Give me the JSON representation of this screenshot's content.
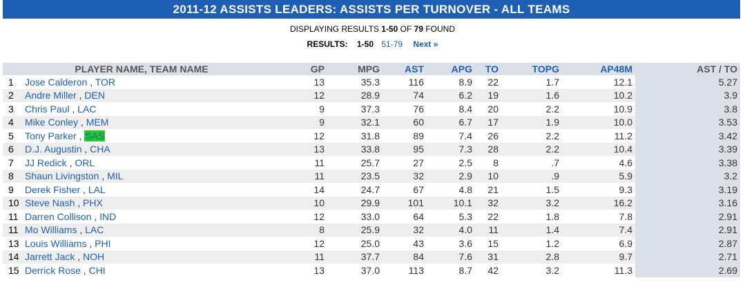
{
  "header": {
    "title": "2011-12 ASSISTS LEADERS:  ASSISTS PER TURNOVER  - ALL TEAMS"
  },
  "summary": {
    "prefix": "DISPLAYING RESULTS ",
    "range": "1-50",
    "of": " OF ",
    "total": "79",
    "suffix": " FOUND"
  },
  "pagination": {
    "label": "RESULTS:",
    "current": "1-50",
    "page2": "51-79",
    "next": "Next »"
  },
  "table": {
    "columns": {
      "name": "PLAYER NAME, TEAM NAME",
      "gp": "GP",
      "mpg": "MPG",
      "ast": "AST",
      "apg": "APG",
      "to": "TO",
      "topg": "TOPG",
      "ap48m": "AP48M",
      "astto": "AST / TO"
    },
    "rows": [
      {
        "rank": "1",
        "player": "Jose Calderon",
        "team": "TOR",
        "gp": "13",
        "mpg": "35.3",
        "ast": "116",
        "apg": "8.9",
        "to": "22",
        "topg": "1.7",
        "ap48m": "12.1",
        "astto": "5.27"
      },
      {
        "rank": "2",
        "player": "Andre Miller",
        "team": "DEN",
        "gp": "12",
        "mpg": "28.9",
        "ast": "74",
        "apg": "6.2",
        "to": "19",
        "topg": "1.6",
        "ap48m": "10.2",
        "astto": "3.9"
      },
      {
        "rank": "3",
        "player": "Chris Paul",
        "team": "LAC",
        "gp": "9",
        "mpg": "37.3",
        "ast": "76",
        "apg": "8.4",
        "to": "20",
        "topg": "2.2",
        "ap48m": "10.9",
        "astto": "3.8"
      },
      {
        "rank": "4",
        "player": "Mike Conley",
        "team": "MEM",
        "gp": "9",
        "mpg": "32.1",
        "ast": "60",
        "apg": "6.7",
        "to": "17",
        "topg": "1.9",
        "ap48m": "10.0",
        "astto": "3.53"
      },
      {
        "rank": "5",
        "player": "Tony Parker",
        "team": "SAS",
        "gp": "12",
        "mpg": "31.8",
        "ast": "89",
        "apg": "7.4",
        "to": "26",
        "topg": "2.2",
        "ap48m": "11.2",
        "astto": "3.42"
      },
      {
        "rank": "6",
        "player": "D.J. Augustin",
        "team": "CHA",
        "gp": "13",
        "mpg": "33.8",
        "ast": "95",
        "apg": "7.3",
        "to": "28",
        "topg": "2.2",
        "ap48m": "10.4",
        "astto": "3.39"
      },
      {
        "rank": "7",
        "player": "JJ Redick",
        "team": "ORL",
        "gp": "11",
        "mpg": "25.7",
        "ast": "27",
        "apg": "2.5",
        "to": "8",
        "topg": ".7",
        "ap48m": "4.6",
        "astto": "3.38"
      },
      {
        "rank": "8",
        "player": "Shaun Livingston",
        "team": "MIL",
        "gp": "11",
        "mpg": "23.5",
        "ast": "32",
        "apg": "2.9",
        "to": "10",
        "topg": ".9",
        "ap48m": "5.9",
        "astto": "3.2"
      },
      {
        "rank": "9",
        "player": "Derek Fisher",
        "team": "LAL",
        "gp": "14",
        "mpg": "24.7",
        "ast": "67",
        "apg": "4.8",
        "to": "21",
        "topg": "1.5",
        "ap48m": "9.3",
        "astto": "3.19"
      },
      {
        "rank": "10",
        "player": "Steve Nash",
        "team": "PHX",
        "gp": "10",
        "mpg": "29.9",
        "ast": "101",
        "apg": "10.1",
        "to": "32",
        "topg": "3.2",
        "ap48m": "16.2",
        "astto": "3.16"
      },
      {
        "rank": "11",
        "player": "Darren Collison",
        "team": "IND",
        "gp": "12",
        "mpg": "33.0",
        "ast": "64",
        "apg": "5.3",
        "to": "22",
        "topg": "1.8",
        "ap48m": "7.8",
        "astto": "2.91"
      },
      {
        "rank": "11",
        "player": "Mo Williams",
        "team": "LAC",
        "gp": "8",
        "mpg": "25.9",
        "ast": "32",
        "apg": "4.0",
        "to": "11",
        "topg": "1.4",
        "ap48m": "7.4",
        "astto": "2.91"
      },
      {
        "rank": "13",
        "player": "Louis Williams",
        "team": "PHI",
        "gp": "12",
        "mpg": "25.0",
        "ast": "43",
        "apg": "3.6",
        "to": "15",
        "topg": "1.2",
        "ap48m": "6.9",
        "astto": "2.87"
      },
      {
        "rank": "14",
        "player": "Jarrett Jack",
        "team": "NOH",
        "gp": "11",
        "mpg": "37.7",
        "ast": "84",
        "apg": "7.6",
        "to": "31",
        "topg": "2.8",
        "ap48m": "9.7",
        "astto": "2.71"
      },
      {
        "rank": "15",
        "player": "Derrick Rose",
        "team": "CHI",
        "gp": "13",
        "mpg": "37.0",
        "ast": "113",
        "apg": "8.7",
        "to": "42",
        "topg": "3.2",
        "ap48m": "11.3",
        "astto": "2.69"
      }
    ]
  },
  "colors": {
    "banner": "#1f5fb3",
    "link": "#1f5fb3",
    "header_bg": "#dbe0e8",
    "alt_row": "#eeeeee",
    "highlight": "#22cc22"
  }
}
